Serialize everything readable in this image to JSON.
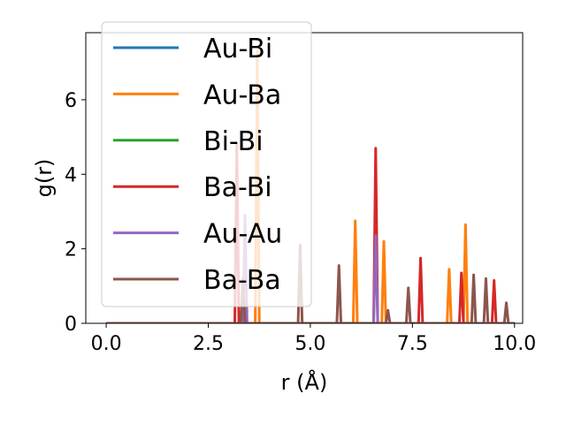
{
  "chart_data": {
    "type": "line",
    "xlabel": "r (Å)",
    "ylabel": "g(r)",
    "xlim": [
      -0.5,
      10.2
    ],
    "ylim": [
      0,
      7.8
    ],
    "xticks": [
      0.0,
      2.5,
      5.0,
      7.5,
      10.0
    ],
    "xtick_labels": [
      "0.0",
      "2.5",
      "5.0",
      "7.5",
      "10.0"
    ],
    "yticks": [
      0,
      2,
      4,
      6
    ],
    "ytick_labels": [
      "0",
      "2",
      "4",
      "6"
    ],
    "legend_position": "upper-left",
    "grid": false,
    "series": [
      {
        "name": "Au-Bi",
        "color": "#1f77b4",
        "peaks": []
      },
      {
        "name": "Au-Ba",
        "color": "#ff7f0e",
        "peaks": [
          [
            3.7,
            7.3
          ],
          [
            6.1,
            2.75
          ],
          [
            6.8,
            2.2
          ],
          [
            8.4,
            1.45
          ],
          [
            8.8,
            2.65
          ]
        ]
      },
      {
        "name": "Bi-Bi",
        "color": "#2ca02c",
        "peaks": []
      },
      {
        "name": "Ba-Bi",
        "color": "#d62728",
        "peaks": [
          [
            3.2,
            4.8
          ],
          [
            6.6,
            4.7
          ],
          [
            7.7,
            1.75
          ],
          [
            8.7,
            1.35
          ],
          [
            9.5,
            1.15
          ]
        ]
      },
      {
        "name": "Au-Au",
        "color": "#9467bd",
        "peaks": [
          [
            3.4,
            2.9
          ],
          [
            6.6,
            2.35
          ]
        ]
      },
      {
        "name": "Ba-Ba",
        "color": "#8c564b",
        "peaks": [
          [
            3.35,
            1.2
          ],
          [
            4.75,
            2.1
          ],
          [
            5.7,
            1.55
          ],
          [
            6.9,
            0.35
          ],
          [
            7.4,
            0.95
          ],
          [
            9.0,
            1.3
          ],
          [
            9.3,
            1.2
          ],
          [
            9.8,
            0.55
          ]
        ]
      }
    ]
  }
}
